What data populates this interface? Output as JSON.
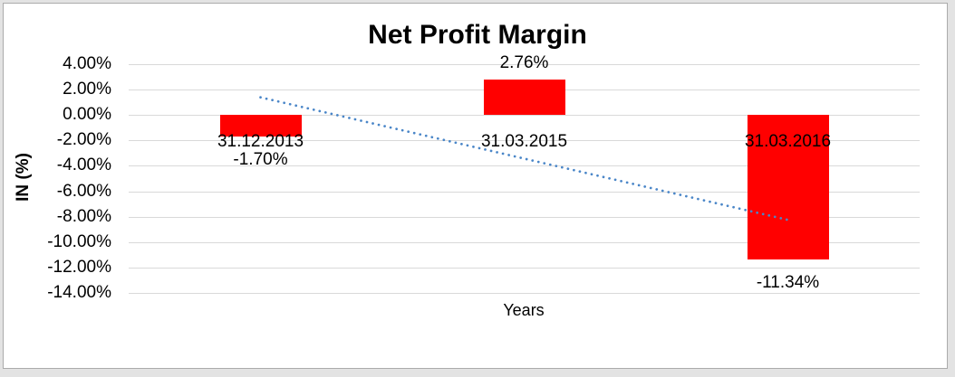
{
  "window": {
    "outer_background": "#e3e3e3",
    "border_color": "#ababab",
    "plot_background": "#ffffff"
  },
  "chart_data": {
    "type": "bar",
    "title": "Net Profit Margin",
    "xlabel": "Years",
    "ylabel": "IN (%)",
    "categories": [
      "31.12.2013",
      "31.03.2015",
      "31.03.2016"
    ],
    "values": [
      -1.7,
      2.76,
      -11.34
    ],
    "data_labels": [
      "-1.70%",
      "2.76%",
      "-11.34%"
    ],
    "ylim": [
      -14,
      4
    ],
    "ytick_step": 2,
    "ytick_labels": [
      "4.00%",
      "2.00%",
      "0.00%",
      "-2.00%",
      "-4.00%",
      "-6.00%",
      "-8.00%",
      "-10.00%",
      "-12.00%",
      "-14.00%"
    ],
    "grid": true,
    "legend": false,
    "bar_color": "#ff0000",
    "gridline_color": "#d9d9d9",
    "text_color": "#000000",
    "trendline": {
      "style": "dotted",
      "color": "#4a86c8",
      "start_value": 1.39,
      "end_value": -8.25
    }
  }
}
